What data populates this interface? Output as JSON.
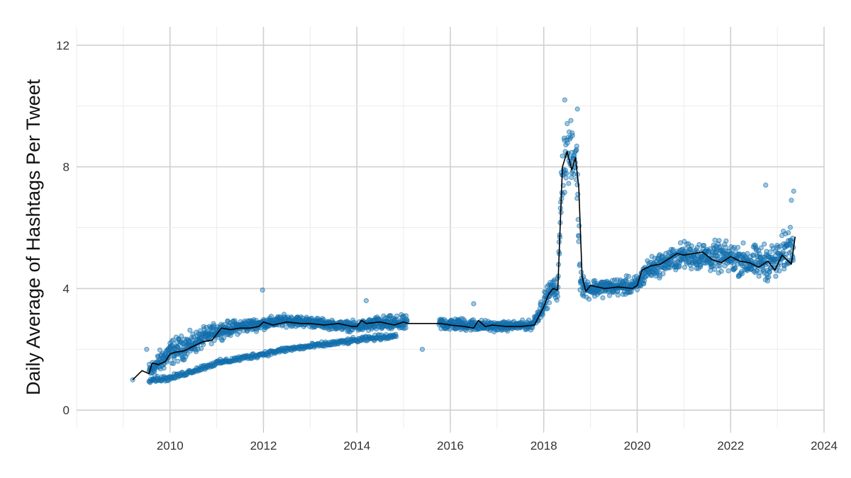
{
  "chart_data": {
    "type": "scatter",
    "title": "",
    "xlabel": "",
    "ylabel": "Daily Average of Hashtags Per Tweet",
    "xlim": [
      2008.0,
      2024.0
    ],
    "ylim": [
      -0.6,
      12.6
    ],
    "x_ticks": [
      2010,
      2012,
      2014,
      2016,
      2018,
      2020,
      2022,
      2024
    ],
    "x_tick_labels": [
      "2010",
      "2012",
      "2014",
      "2016",
      "2018",
      "2020",
      "2022",
      "2024"
    ],
    "y_ticks": [
      0,
      4,
      8,
      12
    ],
    "y_tick_labels": [
      "0",
      "4",
      "8",
      "12"
    ],
    "grid": true,
    "legend": "none",
    "colors": {
      "points": "#1f78b4",
      "points_edge": "#0b6aa8",
      "trend": "#000000"
    },
    "series": [
      {
        "type": "scatter",
        "description_note": "daily averages",
        "envelope": [
          [
            2009.55,
            1.25,
            0.25
          ],
          [
            2010.0,
            1.9,
            0.35
          ],
          [
            2010.5,
            2.2,
            0.3
          ],
          [
            2011.0,
            2.6,
            0.22
          ],
          [
            2011.5,
            2.75,
            0.18
          ],
          [
            2012.0,
            2.85,
            0.15
          ],
          [
            2012.5,
            2.95,
            0.15
          ],
          [
            2013.0,
            2.9,
            0.14
          ],
          [
            2013.5,
            2.8,
            0.12
          ],
          [
            2014.0,
            2.75,
            0.14
          ],
          [
            2014.5,
            2.85,
            0.2
          ],
          [
            2015.05,
            2.85,
            0.2
          ],
          [
            2015.75,
            2.85,
            0.18
          ],
          [
            2016.5,
            2.8,
            0.16
          ],
          [
            2017.0,
            2.75,
            0.12
          ],
          [
            2017.75,
            2.8,
            0.12
          ],
          [
            2018.0,
            3.5,
            0.3
          ],
          [
            2018.15,
            3.95,
            0.25
          ],
          [
            2018.3,
            4.0,
            0.3
          ],
          [
            2018.4,
            8.0,
            0.9
          ],
          [
            2018.5,
            8.6,
            0.9
          ],
          [
            2018.62,
            8.2,
            0.8
          ],
          [
            2018.7,
            8.3,
            0.8
          ],
          [
            2018.78,
            4.4,
            0.5
          ],
          [
            2018.9,
            4.0,
            0.25
          ],
          [
            2019.5,
            4.05,
            0.22
          ],
          [
            2020.0,
            4.1,
            0.25
          ],
          [
            2020.2,
            4.6,
            0.3
          ],
          [
            2020.5,
            4.8,
            0.3
          ],
          [
            2021.0,
            5.1,
            0.35
          ],
          [
            2021.5,
            5.05,
            0.4
          ],
          [
            2022.0,
            5.0,
            0.4
          ],
          [
            2022.5,
            4.85,
            0.45
          ],
          [
            2023.0,
            4.9,
            0.5
          ],
          [
            2023.35,
            5.6,
            0.6
          ]
        ],
        "lower_band": [
          [
            2009.55,
            1.0
          ],
          [
            2010.0,
            1.05
          ],
          [
            2010.5,
            1.3
          ],
          [
            2011.0,
            1.55
          ],
          [
            2011.5,
            1.7
          ],
          [
            2012.0,
            1.85
          ],
          [
            2012.5,
            2.0
          ],
          [
            2013.0,
            2.1
          ],
          [
            2013.5,
            2.2
          ],
          [
            2014.0,
            2.3
          ],
          [
            2014.5,
            2.4
          ],
          [
            2014.85,
            2.45
          ]
        ],
        "outliers": [
          [
            2009.2,
            1.0
          ],
          [
            2009.5,
            2.0
          ],
          [
            2011.98,
            3.95
          ],
          [
            2014.2,
            3.6
          ],
          [
            2015.4,
            2.0
          ],
          [
            2016.5,
            3.5
          ],
          [
            2022.75,
            7.4
          ],
          [
            2023.35,
            7.2
          ],
          [
            2023.3,
            6.9
          ],
          [
            2018.45,
            10.2
          ],
          [
            2018.72,
            9.9
          ]
        ]
      },
      {
        "type": "line",
        "description_note": "monthly trend",
        "x": [
          2009.2,
          2009.4,
          2009.55,
          2009.62,
          2009.75,
          2009.9,
          2010.0,
          2010.1,
          2010.3,
          2010.5,
          2010.7,
          2010.9,
          2011.1,
          2011.3,
          2011.5,
          2011.7,
          2011.9,
          2012.0,
          2012.2,
          2012.5,
          2012.8,
          2013.0,
          2013.3,
          2013.6,
          2013.9,
          2014.0,
          2014.1,
          2014.2,
          2014.5,
          2014.8,
          2015.0,
          2015.1,
          2015.8,
          2016.0,
          2016.3,
          2016.5,
          2016.6,
          2016.75,
          2016.9,
          2017.2,
          2017.5,
          2017.8,
          2018.0,
          2018.1,
          2018.2,
          2018.3,
          2018.4,
          2018.5,
          2018.6,
          2018.68,
          2018.75,
          2018.82,
          2018.9,
          2019.0,
          2019.3,
          2019.6,
          2019.9,
          2020.0,
          2020.1,
          2020.3,
          2020.5,
          2020.7,
          2020.85,
          2021.0,
          2021.2,
          2021.4,
          2021.6,
          2021.8,
          2022.0,
          2022.2,
          2022.4,
          2022.6,
          2022.8,
          2022.95,
          2023.1,
          2023.3,
          2023.38
        ],
        "y": [
          1.0,
          1.3,
          1.2,
          1.55,
          1.5,
          1.6,
          1.85,
          1.9,
          1.95,
          2.1,
          2.25,
          2.3,
          2.7,
          2.65,
          2.7,
          2.7,
          2.75,
          2.9,
          2.8,
          2.9,
          2.85,
          2.85,
          2.8,
          2.85,
          2.75,
          2.75,
          2.95,
          2.85,
          2.9,
          2.8,
          2.9,
          2.85,
          2.85,
          2.8,
          2.75,
          2.7,
          2.95,
          2.75,
          2.8,
          2.75,
          2.75,
          2.8,
          3.4,
          3.8,
          4.0,
          3.95,
          8.0,
          8.5,
          7.9,
          8.3,
          7.3,
          4.4,
          3.9,
          4.1,
          4.0,
          4.05,
          4.0,
          4.1,
          4.6,
          4.75,
          4.8,
          5.0,
          5.15,
          5.1,
          5.15,
          5.2,
          4.95,
          4.85,
          5.05,
          4.9,
          4.85,
          4.7,
          4.9,
          4.6,
          5.1,
          4.8,
          5.7
        ]
      }
    ]
  }
}
